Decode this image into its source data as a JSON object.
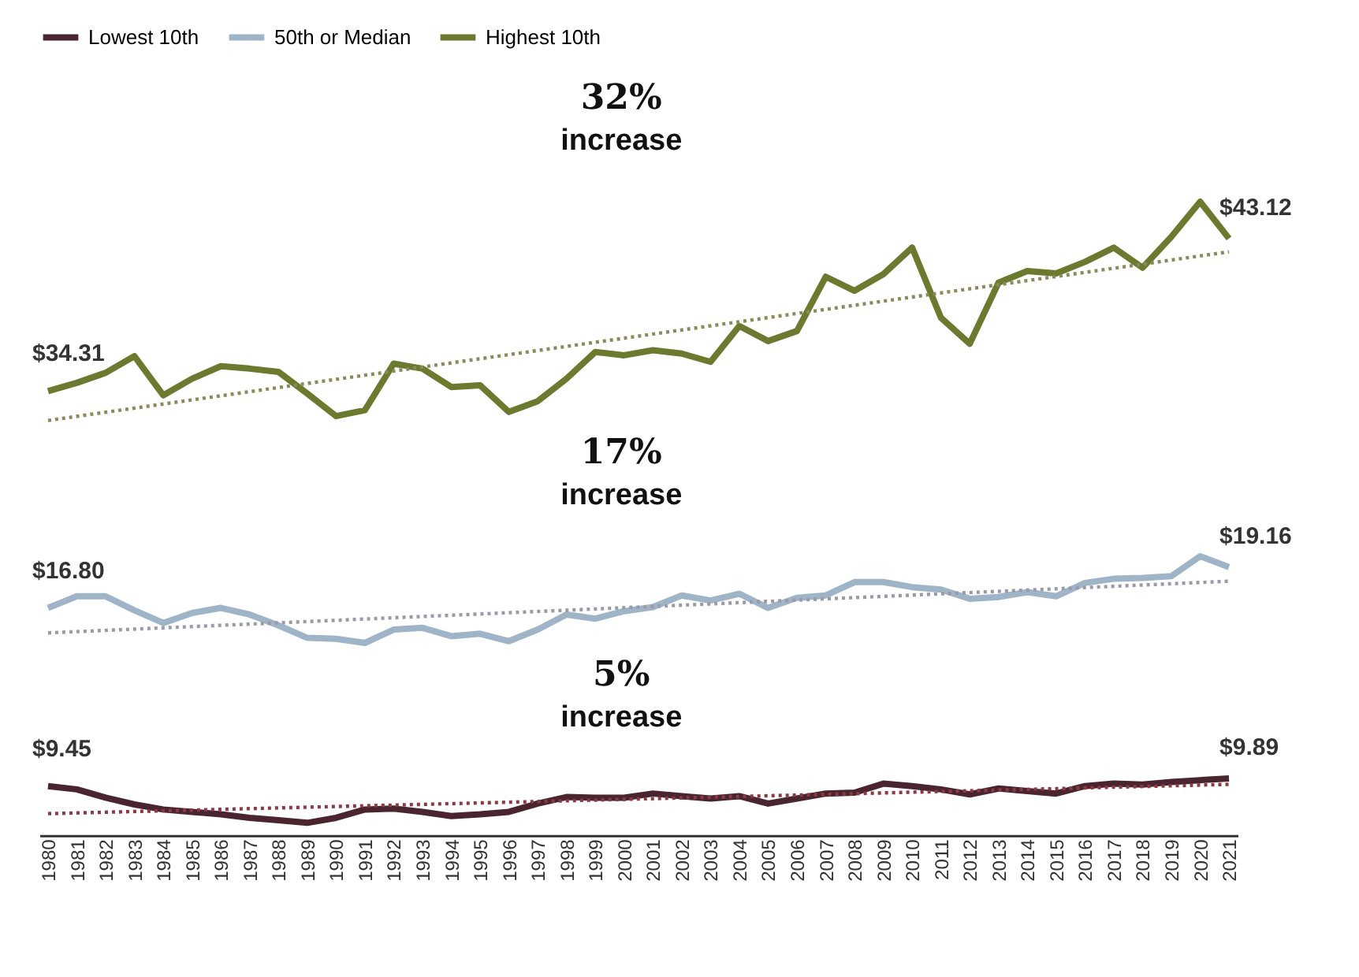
{
  "chart_data": [
    {
      "type": "line",
      "legend": "top",
      "tick_labels": false,
      "line_style": "solid",
      "marker": "none",
      "annotations": [
        "32%",
        "increase"
      ],
      "categories": [
        "1980",
        "1981",
        "1982",
        "1983",
        "1984",
        "1985",
        "1986",
        "1987",
        "1988",
        "1989",
        "1990",
        "1991",
        "1992",
        "1993",
        "1994",
        "1995",
        "1996",
        "1997",
        "1998",
        "1999",
        "2000",
        "2001",
        "2002",
        "2003",
        "2004",
        "2005",
        "2006",
        "2007",
        "2008",
        "2009",
        "2010",
        "2011",
        "2012",
        "2013",
        "2014",
        "2015",
        "2016",
        "2017",
        "2018",
        "2019",
        "2020",
        "2021"
      ],
      "series": [
        {
          "name": "Highest 10th",
          "color": "#6b7a2e",
          "values": [
            34.31,
            34.79,
            35.37,
            36.33,
            34.07,
            35.03,
            35.75,
            35.61,
            35.42,
            34.17,
            32.87,
            33.21,
            35.9,
            35.61,
            34.55,
            34.65,
            33.11,
            33.73,
            35.03,
            36.57,
            36.38,
            36.67,
            36.48,
            36.0,
            38.07,
            37.2,
            37.78,
            40.91,
            40.1,
            41.06,
            42.59,
            38.55,
            37.05,
            40.57,
            41.24,
            41.1,
            41.77,
            42.59,
            41.43,
            43.22,
            45.24,
            43.12
          ],
          "value_labels": [
            "$34.31",
            null,
            null,
            null,
            null,
            null,
            null,
            null,
            null,
            null,
            null,
            null,
            null,
            null,
            null,
            null,
            null,
            null,
            null,
            null,
            null,
            null,
            null,
            null,
            null,
            null,
            null,
            null,
            null,
            null,
            null,
            null,
            null,
            null,
            null,
            null,
            null,
            null,
            null,
            null,
            null,
            "$43.12"
          ]
        },
        {
          "type": "line",
          "line_style": "dotted",
          "color": "#8a8a5a",
          "values": [
            32.62,
            null,
            null,
            null,
            null,
            null,
            null,
            null,
            null,
            null,
            null,
            null,
            null,
            null,
            null,
            null,
            null,
            null,
            null,
            null,
            null,
            null,
            null,
            null,
            null,
            null,
            null,
            null,
            null,
            null,
            null,
            null,
            null,
            null,
            null,
            null,
            null,
            null,
            null,
            null,
            null,
            42.35
          ]
        }
      ]
    },
    {
      "type": "line",
      "tick_labels": false,
      "line_style": "solid",
      "marker": "none",
      "annotations": [
        "17%",
        "increase"
      ],
      "categories": [
        "1980",
        "1981",
        "1982",
        "1983",
        "1984",
        "1985",
        "1986",
        "1987",
        "1988",
        "1989",
        "1990",
        "1991",
        "1992",
        "1993",
        "1994",
        "1995",
        "1996",
        "1997",
        "1998",
        "1999",
        "2000",
        "2001",
        "2002",
        "2003",
        "2004",
        "2005",
        "2006",
        "2007",
        "2008",
        "2009",
        "2010",
        "2011",
        "2012",
        "2013",
        "2014",
        "2015",
        "2016",
        "2017",
        "2018",
        "2019",
        "2020",
        "2021"
      ],
      "series": [
        {
          "name": "50th or Median",
          "color": "#9fb4c7",
          "values": [
            16.8,
            17.47,
            17.47,
            16.66,
            15.93,
            16.51,
            16.8,
            16.42,
            15.79,
            15.07,
            15.02,
            14.78,
            15.55,
            15.65,
            15.17,
            15.31,
            14.88,
            15.55,
            16.42,
            16.18,
            16.61,
            16.85,
            17.52,
            17.23,
            17.62,
            16.8,
            17.38,
            17.52,
            18.29,
            18.29,
            18.0,
            17.86,
            17.33,
            17.43,
            17.71,
            17.47,
            18.24,
            18.48,
            18.53,
            18.63,
            19.78,
            19.16
          ],
          "value_labels": [
            "$16.80",
            null,
            null,
            null,
            null,
            null,
            null,
            null,
            null,
            null,
            null,
            null,
            null,
            null,
            null,
            null,
            null,
            null,
            null,
            null,
            null,
            null,
            null,
            null,
            null,
            null,
            null,
            null,
            null,
            null,
            null,
            null,
            null,
            null,
            null,
            null,
            null,
            null,
            null,
            null,
            null,
            "$19.16"
          ]
        },
        {
          "type": "line",
          "line_style": "dotted",
          "color": "#9a9aaa",
          "values": [
            15.36,
            null,
            null,
            null,
            null,
            null,
            null,
            null,
            null,
            null,
            null,
            null,
            null,
            null,
            null,
            null,
            null,
            null,
            null,
            null,
            null,
            null,
            null,
            null,
            null,
            null,
            null,
            null,
            null,
            null,
            null,
            null,
            null,
            null,
            null,
            null,
            null,
            null,
            null,
            null,
            null,
            18.34
          ]
        }
      ]
    },
    {
      "type": "line",
      "tick_labels": "x",
      "line_style": "solid",
      "marker": "none",
      "annotations": [
        "5%",
        "increase"
      ],
      "categories": [
        "1980",
        "1981",
        "1982",
        "1983",
        "1984",
        "1985",
        "1986",
        "1987",
        "1988",
        "1989",
        "1990",
        "1991",
        "1992",
        "1993",
        "1994",
        "1995",
        "1996",
        "1997",
        "1998",
        "1999",
        "2000",
        "2001",
        "2002",
        "2003",
        "2004",
        "2005",
        "2006",
        "2007",
        "2008",
        "2009",
        "2010",
        "2011",
        "2012",
        "2013",
        "2014",
        "2015",
        "2016",
        "2017",
        "2018",
        "2019",
        "2020",
        "2021"
      ],
      "series": [
        {
          "name": "Lowest 10th",
          "color": "#4a2530",
          "values": [
            9.45,
            9.26,
            8.78,
            8.39,
            8.1,
            7.96,
            7.82,
            7.62,
            7.48,
            7.33,
            7.62,
            8.1,
            8.15,
            7.96,
            7.72,
            7.82,
            7.96,
            8.44,
            8.82,
            8.78,
            8.78,
            9.02,
            8.87,
            8.73,
            8.87,
            8.44,
            8.73,
            9.02,
            9.07,
            9.59,
            9.45,
            9.26,
            8.97,
            9.31,
            9.16,
            9.02,
            9.45,
            9.59,
            9.54,
            9.69,
            9.79,
            9.89
          ],
          "value_labels": [
            "$9.45",
            null,
            null,
            null,
            null,
            null,
            null,
            null,
            null,
            null,
            null,
            null,
            null,
            null,
            null,
            null,
            null,
            null,
            null,
            null,
            null,
            null,
            null,
            null,
            null,
            null,
            null,
            null,
            null,
            null,
            null,
            null,
            null,
            null,
            null,
            null,
            null,
            null,
            null,
            null,
            null,
            "$9.89"
          ]
        },
        {
          "type": "line",
          "line_style": "dotted",
          "color": "#8a3a44",
          "values": [
            7.86,
            null,
            null,
            null,
            null,
            null,
            null,
            null,
            null,
            null,
            null,
            null,
            null,
            null,
            null,
            null,
            null,
            null,
            null,
            null,
            null,
            null,
            null,
            null,
            null,
            null,
            null,
            null,
            null,
            null,
            null,
            null,
            null,
            null,
            null,
            null,
            null,
            null,
            null,
            null,
            null,
            9.55
          ]
        }
      ]
    }
  ]
}
